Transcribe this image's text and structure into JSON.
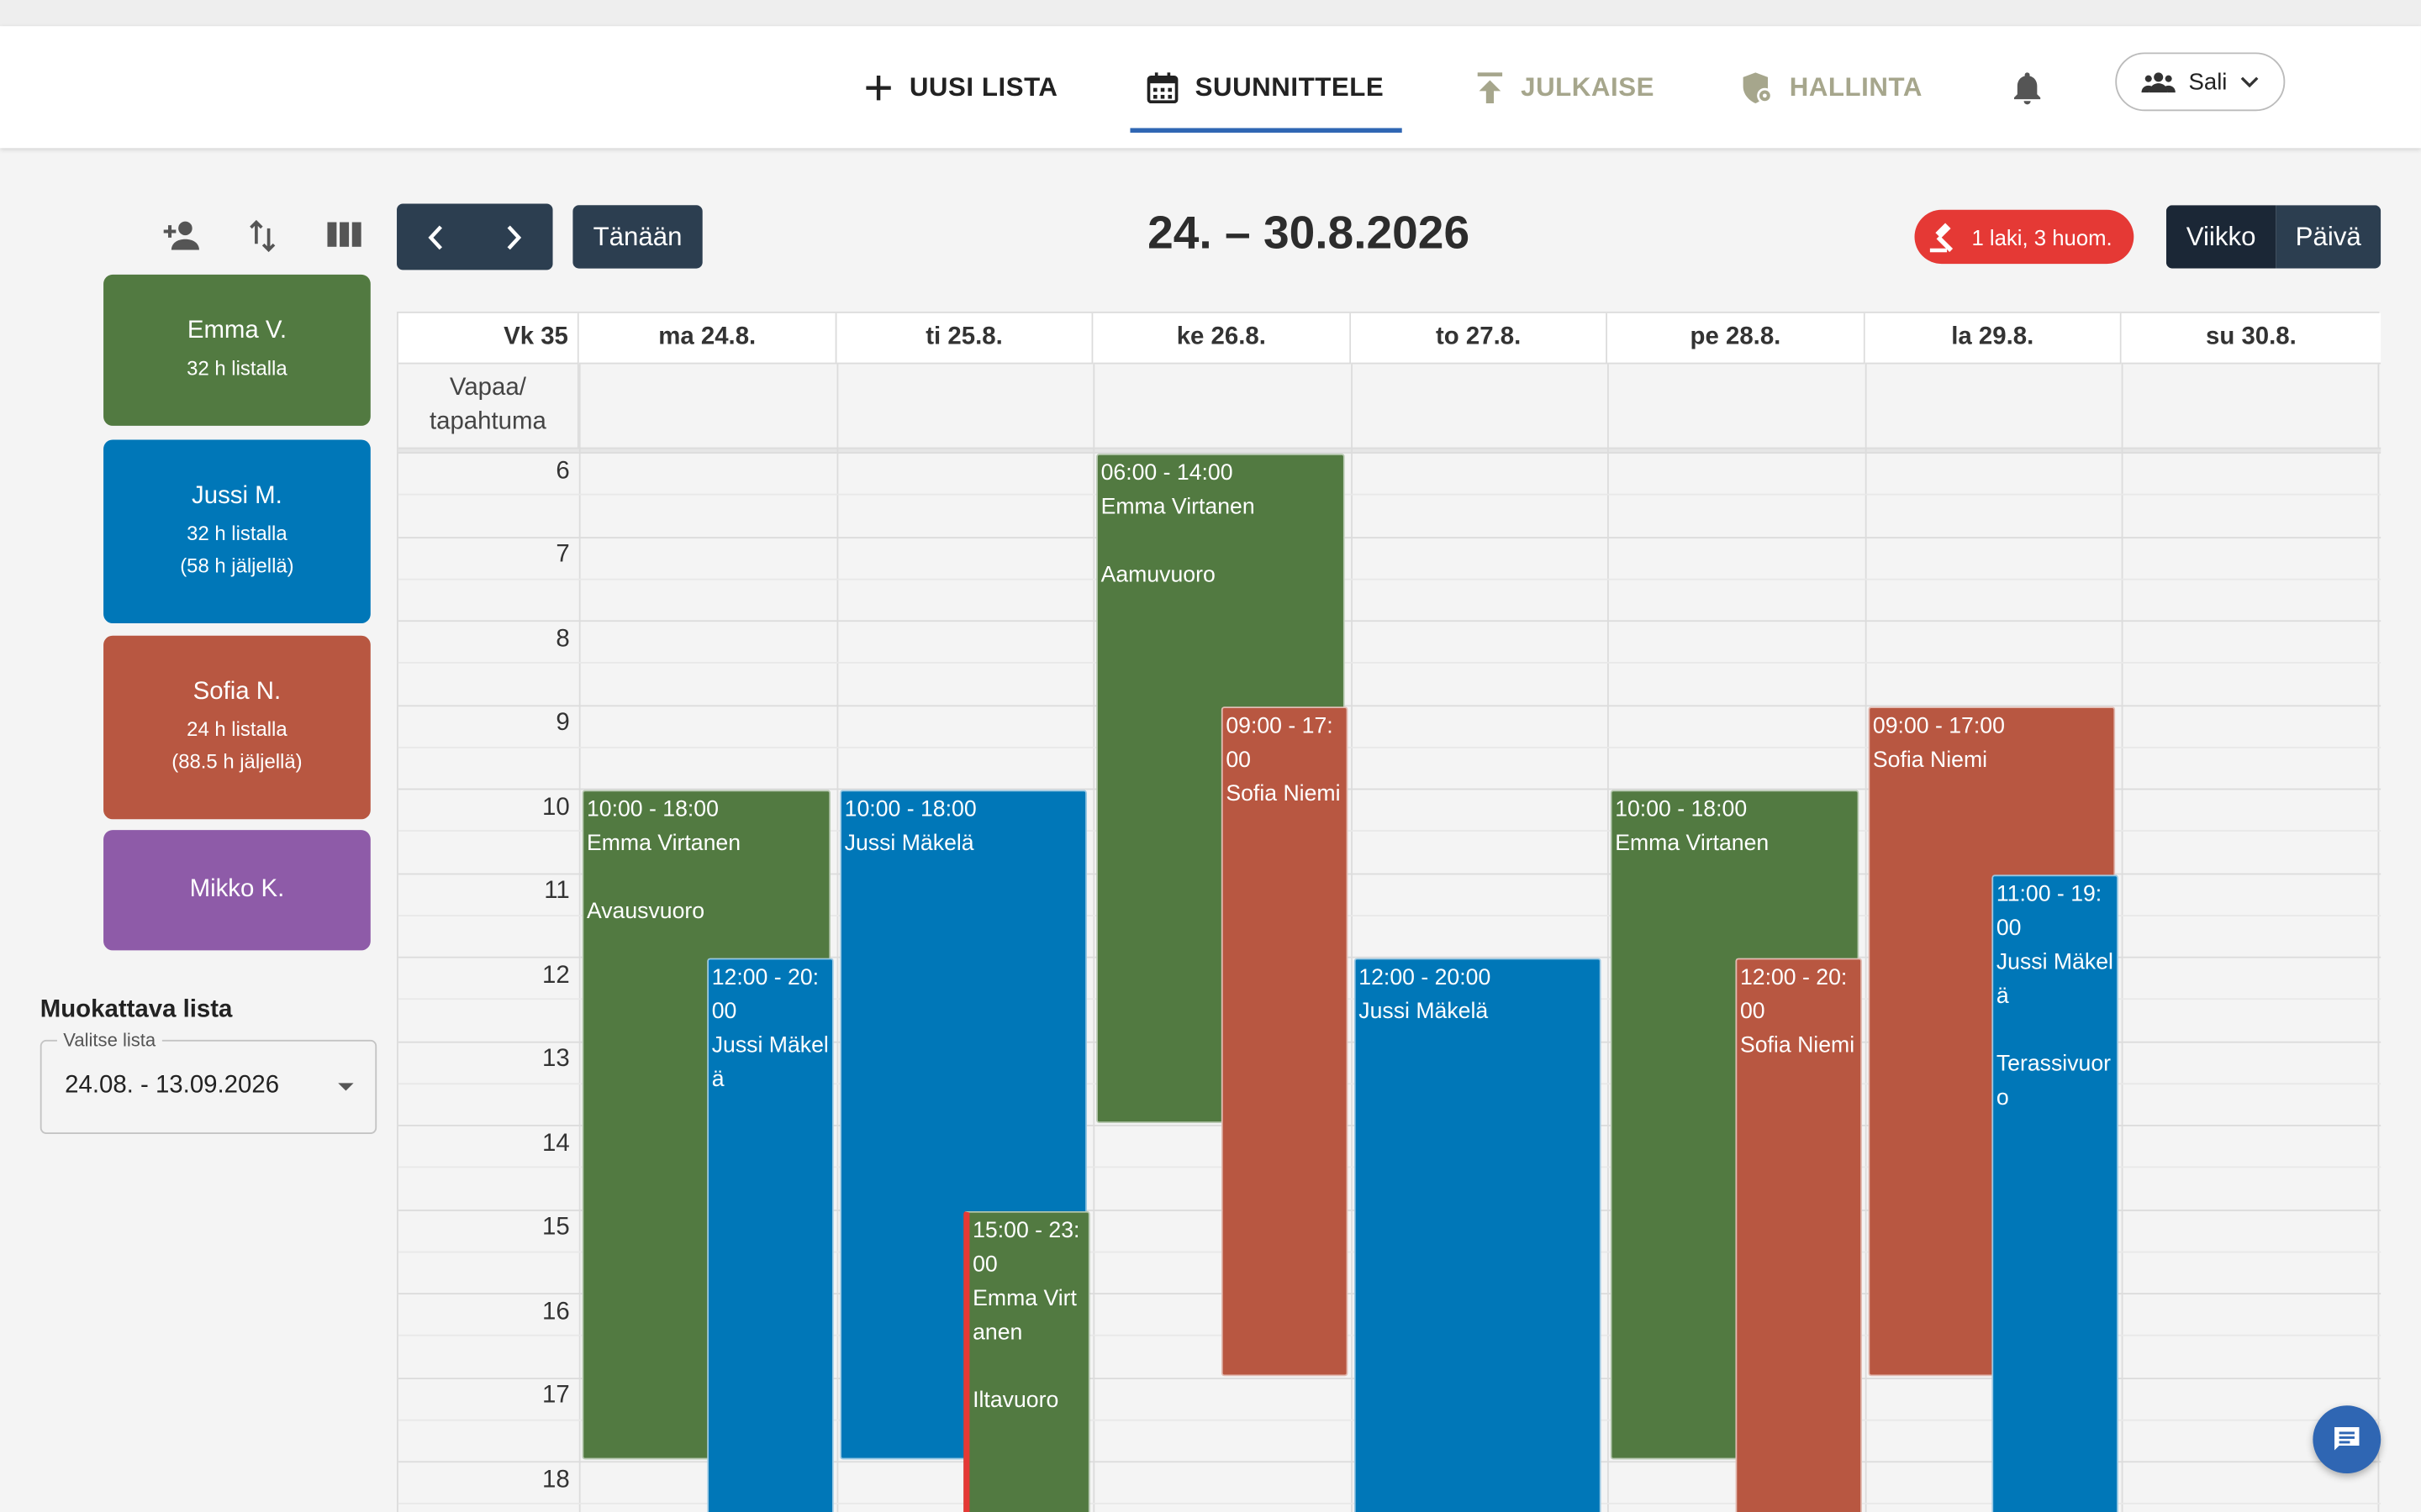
{
  "nav": {
    "new_list": "UUSI LISTA",
    "plan": "SUUNNITTELE",
    "publish": "JULKAISE",
    "admin": "HALLINTA",
    "room": "Sali"
  },
  "employees": [
    {
      "name": "Emma V.",
      "line1": "32 h listalla",
      "line2": "",
      "color": "#527a41"
    },
    {
      "name": "Jussi M.",
      "line1": "32 h listalla",
      "line2": "(58 h jäljellä)",
      "color": "#0077b8"
    },
    {
      "name": "Sofia N.",
      "line1": "24 h listalla",
      "line2": "(88.5 h jäljellä)",
      "color": "#b85741"
    },
    {
      "name": "Mikko K.",
      "line1": "",
      "line2": "",
      "color": "#8e5ba8"
    }
  ],
  "list_panel": {
    "title": "Muokattava lista",
    "label": "Valitse lista",
    "value": "24.08. - 13.09.2026"
  },
  "toolbar": {
    "today": "Tänään",
    "date_range": "24. – 30.8.2026",
    "law_badge": "1 laki, 3 huom.",
    "view_week": "Viikko",
    "view_day": "Päivä"
  },
  "calendar": {
    "week_label": "Vk 35",
    "allday_label": "Vapaa/ tapahtuma",
    "days": [
      "ma 24.8.",
      "ti 25.8.",
      "ke 26.8.",
      "to 27.8.",
      "pe 28.8.",
      "la 29.8.",
      "su 30.8."
    ],
    "hours": [
      "6",
      "7",
      "8",
      "9",
      "10",
      "11",
      "12",
      "13",
      "14",
      "15",
      "16",
      "17",
      "18"
    ],
    "events": [
      {
        "day": 0,
        "start": 10,
        "end": 18,
        "col": 0,
        "cols": 1,
        "text": "10:00 - 18:00\nEmma Virtanen\n\nAvausvuoro",
        "color": "green"
      },
      {
        "day": 0,
        "start": 12,
        "end": 20,
        "col": 1,
        "cols": 2,
        "text": "12:00 - 20:00\nJussi Mäkelä",
        "color": "blue"
      },
      {
        "day": 1,
        "start": 10,
        "end": 18,
        "col": 0,
        "cols": 1,
        "text": "10:00 - 18:00\nJussi Mäkelä",
        "color": "blue"
      },
      {
        "day": 1,
        "start": 15,
        "end": 23,
        "col": 1,
        "cols": 2,
        "text": "15:00 - 23:00\nEmma Virtanen\n\nIltavuoro",
        "color": "green",
        "warn": true
      },
      {
        "day": 2,
        "start": 6,
        "end": 14,
        "col": 0,
        "cols": 1,
        "text": "06:00 - 14:00\nEmma Virtanen\n\nAamuvuoro",
        "color": "green"
      },
      {
        "day": 2,
        "start": 9,
        "end": 17,
        "col": 1,
        "cols": 2,
        "text": "09:00 - 17:00\nSofia Niemi",
        "color": "red"
      },
      {
        "day": 3,
        "start": 12,
        "end": 20,
        "col": 0,
        "cols": 1,
        "text": "12:00 - 20:00\nJussi Mäkelä",
        "color": "blue"
      },
      {
        "day": 4,
        "start": 10,
        "end": 18,
        "col": 0,
        "cols": 1,
        "text": "10:00 - 18:00\nEmma Virtanen",
        "color": "green"
      },
      {
        "day": 4,
        "start": 12,
        "end": 20,
        "col": 1,
        "cols": 2,
        "text": "12:00 - 20:00\nSofia Niemi",
        "color": "red"
      },
      {
        "day": 5,
        "start": 9,
        "end": 17,
        "col": 0,
        "cols": 1,
        "text": "09:00 - 17:00\nSofia Niemi",
        "color": "red"
      },
      {
        "day": 5,
        "start": 11,
        "end": 19,
        "col": 1,
        "cols": 2,
        "text": "11:00 - 19:00\nJussi Mäkelä\n\nTerassivuoro",
        "color": "blue"
      }
    ]
  }
}
